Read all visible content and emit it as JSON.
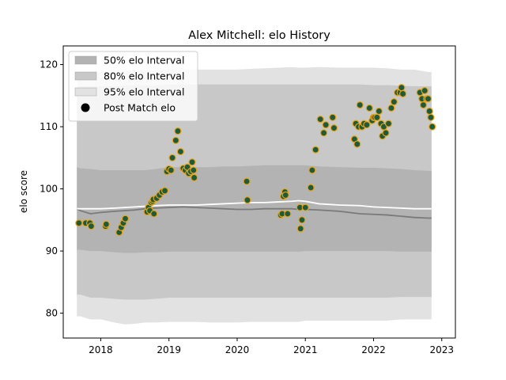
{
  "chart_data": {
    "type": "scatter",
    "title": "Alex Mitchell: elo History",
    "xlabel": "",
    "ylabel": "elo score",
    "xlim": [
      2017.45,
      2023.2
    ],
    "ylim": [
      76,
      123
    ],
    "xticks": [
      2018,
      2019,
      2020,
      2021,
      2022,
      2023
    ],
    "yticks": [
      80,
      90,
      100,
      110,
      120
    ],
    "grid": false,
    "legend_position": "top-left",
    "legend": [
      {
        "label": "50% elo Interval",
        "kind": "band",
        "color": "#b3b3b3"
      },
      {
        "label": "80% elo Interval",
        "kind": "band",
        "color": "#c8c8c8"
      },
      {
        "label": "95% elo Interval",
        "kind": "band",
        "color": "#e2e2e2"
      },
      {
        "label": "Post Match elo",
        "kind": "marker",
        "color": "#000000"
      }
    ],
    "bands": {
      "x": [
        2017.65,
        2017.7,
        2017.85,
        2018.0,
        2018.2,
        2018.35,
        2018.5,
        2018.65,
        2018.8,
        2019.0,
        2019.2,
        2019.4,
        2019.6,
        2019.8,
        2020.0,
        2020.2,
        2020.4,
        2020.6,
        2020.8,
        2020.9,
        2021.0,
        2021.2,
        2021.5,
        2021.8,
        2022.0,
        2022.2,
        2022.4,
        2022.6,
        2022.8,
        2022.85
      ],
      "p95_upper": [
        117.5,
        118.5,
        118.5,
        118.8,
        118.8,
        119.0,
        119.0,
        119.0,
        119.1,
        119.2,
        119.2,
        119.2,
        119.2,
        119.2,
        119.2,
        119.3,
        119.4,
        119.5,
        119.6,
        119.5,
        119.5,
        119.6,
        119.5,
        119.5,
        119.5,
        119.4,
        119.2,
        119.2,
        118.8,
        118.8
      ],
      "p95_lower": [
        79.5,
        79.5,
        79.0,
        79.0,
        78.5,
        78.2,
        78.3,
        78.5,
        78.5,
        78.6,
        78.6,
        78.6,
        78.5,
        78.5,
        78.5,
        78.6,
        78.6,
        78.6,
        78.6,
        78.6,
        78.8,
        78.8,
        78.8,
        78.8,
        78.8,
        78.8,
        79.0,
        79.0,
        79.0,
        79.0
      ],
      "p80_upper": [
        116.0,
        116.5,
        116.5,
        116.5,
        116.5,
        116.6,
        116.6,
        116.6,
        116.6,
        116.8,
        116.8,
        116.8,
        116.8,
        116.8,
        116.8,
        116.8,
        116.8,
        116.8,
        116.8,
        116.8,
        116.8,
        116.8,
        116.8,
        116.8,
        116.7,
        116.7,
        116.6,
        116.5,
        116.5,
        116.5
      ],
      "p80_lower": [
        83.0,
        83.0,
        82.5,
        82.5,
        82.3,
        82.2,
        82.2,
        82.2,
        82.3,
        82.5,
        82.5,
        82.5,
        82.5,
        82.5,
        82.5,
        82.5,
        82.5,
        82.5,
        82.5,
        82.5,
        82.5,
        82.5,
        82.5,
        82.5,
        82.5,
        82.5,
        82.6,
        82.6,
        82.6,
        82.6
      ],
      "p50_upper": [
        103.5,
        103.3,
        103.2,
        103.0,
        103.0,
        103.0,
        103.0,
        103.0,
        103.2,
        103.5,
        103.5,
        103.5,
        103.5,
        103.6,
        103.6,
        103.7,
        103.8,
        103.8,
        103.8,
        103.8,
        103.8,
        103.6,
        103.5,
        103.4,
        103.4,
        103.3,
        103.2,
        103.0,
        102.9,
        102.9
      ],
      "p50_lower": [
        90.2,
        90.2,
        90.0,
        90.0,
        89.8,
        89.7,
        89.7,
        89.8,
        89.8,
        89.9,
        89.9,
        89.9,
        89.9,
        89.9,
        89.9,
        89.9,
        89.9,
        89.9,
        89.9,
        89.9,
        90.0,
        90.0,
        90.0,
        90.0,
        90.0,
        90.0,
        89.9,
        89.9,
        89.9,
        89.9
      ],
      "median": [
        96.8,
        96.5,
        96.0,
        96.2,
        96.4,
        96.5,
        96.6,
        96.8,
        96.9,
        97.0,
        97.1,
        97.0,
        96.9,
        96.8,
        96.7,
        96.7,
        96.8,
        96.8,
        96.8,
        96.7,
        96.7,
        96.6,
        96.4,
        96.0,
        95.9,
        95.8,
        95.6,
        95.4,
        95.3,
        95.3
      ],
      "mean": [
        96.8,
        96.8,
        96.8,
        96.8,
        96.9,
        97.0,
        97.1,
        97.2,
        97.3,
        97.4,
        97.4,
        97.4,
        97.5,
        97.6,
        97.7,
        97.8,
        97.8,
        97.9,
        98.0,
        98.1,
        98.0,
        97.6,
        97.4,
        97.3,
        97.1,
        97.0,
        96.9,
        96.8,
        96.8,
        96.8
      ]
    },
    "points": {
      "x": [
        2017.68,
        2017.78,
        2017.84,
        2017.86,
        2018.07,
        2018.08,
        2018.27,
        2018.3,
        2018.33,
        2018.36,
        2018.68,
        2018.7,
        2018.72,
        2018.74,
        2018.76,
        2018.77,
        2018.78,
        2018.82,
        2018.86,
        2018.9,
        2018.94,
        2018.97,
        2019.0,
        2019.03,
        2019.05,
        2019.1,
        2019.13,
        2019.17,
        2019.21,
        2019.24,
        2019.27,
        2019.29,
        2019.32,
        2019.34,
        2019.36,
        2019.37,
        2020.14,
        2020.15,
        2020.64,
        2020.66,
        2020.68,
        2020.7,
        2020.71,
        2020.74,
        2020.92,
        2020.93,
        2020.95,
        2021.0,
        2021.08,
        2021.1,
        2021.15,
        2021.22,
        2021.27,
        2021.3,
        2021.4,
        2021.42,
        2021.72,
        2021.74,
        2021.76,
        2021.78,
        2021.8,
        2021.83,
        2021.86,
        2021.9,
        2021.94,
        2021.98,
        2022.0,
        2022.02,
        2022.05,
        2022.08,
        2022.11,
        2022.13,
        2022.15,
        2022.18,
        2022.22,
        2022.26,
        2022.3,
        2022.35,
        2022.39,
        2022.41,
        2022.43,
        2022.68,
        2022.71,
        2022.73,
        2022.75,
        2022.78,
        2022.8,
        2022.82,
        2022.84,
        2022.86
      ],
      "y": [
        94.5,
        94.5,
        94.5,
        94.0,
        94.0,
        94.3,
        93.0,
        93.8,
        94.5,
        95.2,
        96.3,
        97.0,
        96.5,
        97.8,
        98.0,
        98.3,
        96.0,
        98.5,
        99.0,
        99.5,
        99.7,
        102.8,
        103.2,
        103.0,
        105.0,
        107.8,
        109.3,
        106.0,
        103.3,
        103.0,
        103.5,
        102.5,
        102.8,
        104.3,
        103.0,
        101.8,
        101.2,
        98.2,
        95.8,
        96.0,
        98.8,
        99.5,
        99.0,
        96.0,
        97.0,
        93.6,
        95.0,
        97.0,
        100.2,
        103.0,
        106.3,
        111.2,
        109.0,
        110.3,
        111.5,
        109.8,
        108.0,
        110.5,
        107.2,
        110.0,
        113.5,
        110.0,
        110.5,
        110.3,
        113.0,
        111.0,
        111.5,
        111.5,
        111.5,
        112.5,
        110.5,
        108.5,
        110.0,
        109.0,
        110.5,
        113.0,
        114.0,
        115.5,
        115.5,
        116.3,
        115.3,
        115.5,
        114.5,
        113.5,
        115.8,
        114.5,
        114.5,
        112.5,
        111.5,
        110.0
      ],
      "fill": "#1f5a3a",
      "edge": "#e8a317"
    }
  }
}
